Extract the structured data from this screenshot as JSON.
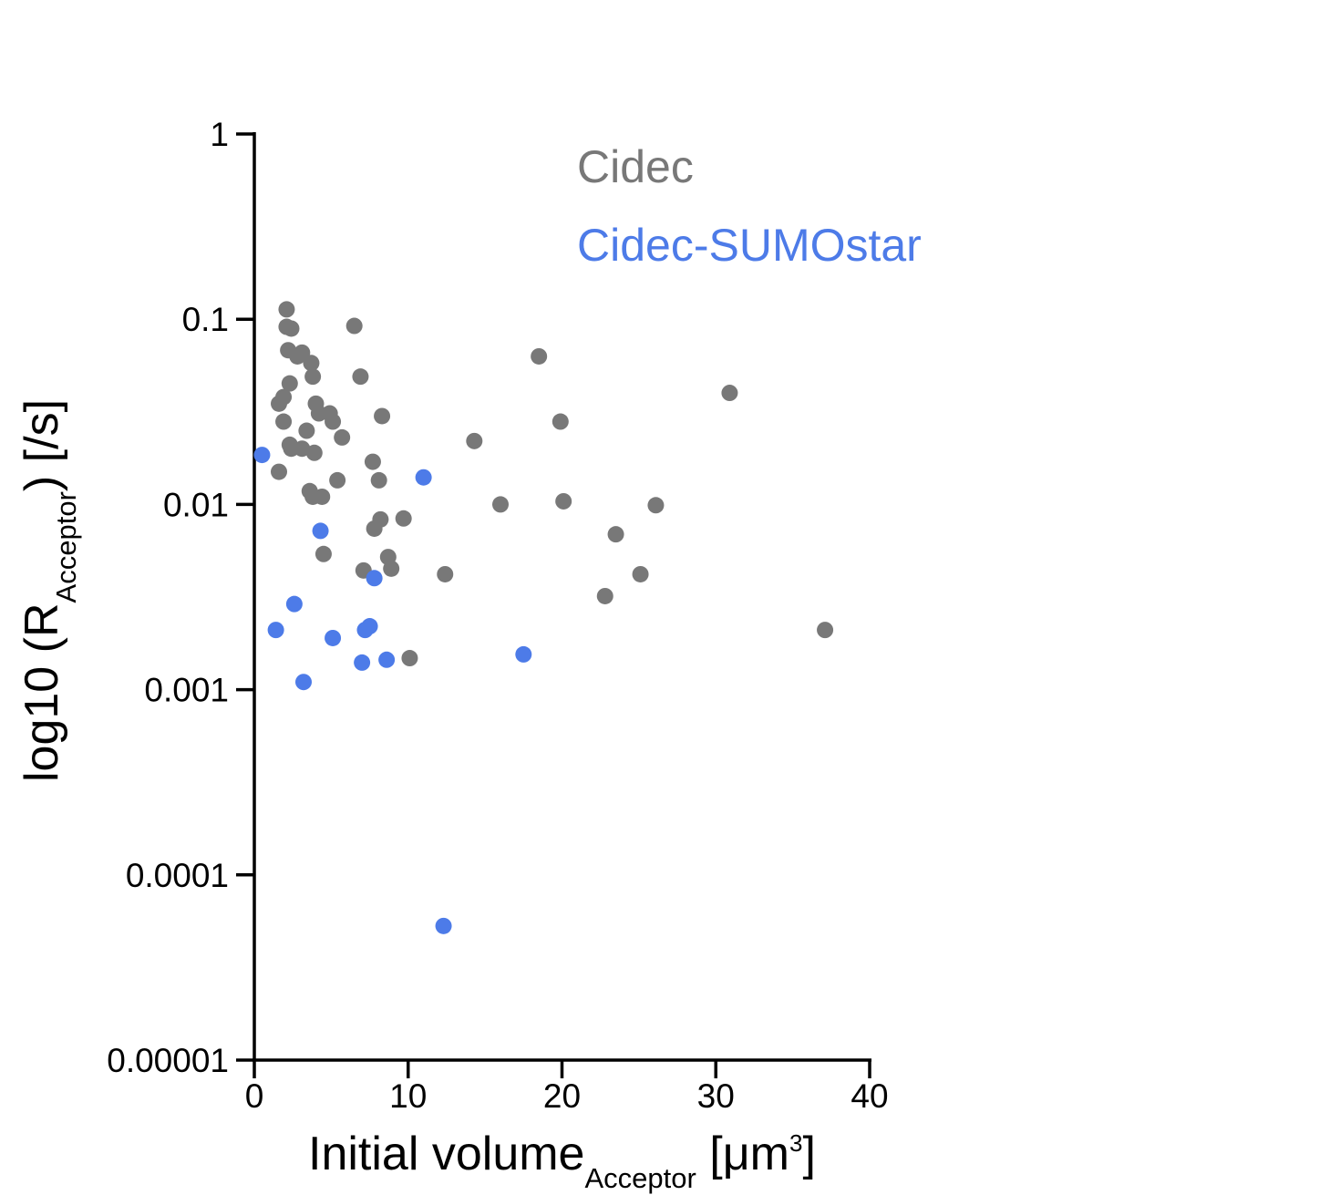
{
  "chart_data": {
    "type": "scatter",
    "xlabel": {
      "main": "Initial volume",
      "sub": "Acceptor",
      "unit_open": " [μm",
      "unit_sup": "3",
      "unit_close": "]"
    },
    "ylabel": {
      "main": "log10 (R",
      "sub": "Acceptor",
      "rest": ") [/s]"
    },
    "xlim": [
      0,
      40
    ],
    "ylim": [
      1e-05,
      1
    ],
    "yscale": "log",
    "xticks": [
      0,
      10,
      20,
      30,
      40
    ],
    "xtick_labels": [
      "0",
      "10",
      "20",
      "30",
      "40"
    ],
    "yticks": [
      1,
      0.1,
      0.01,
      0.001,
      0.0001,
      1e-05
    ],
    "ytick_labels": [
      "1",
      "0.1",
      "0.01",
      "0.001",
      "0.0001",
      "0.00001"
    ],
    "legend_placement": "top-center",
    "grid": false,
    "series": [
      {
        "name": "Cidec",
        "color": "#787878",
        "points": [
          [
            2.1,
            0.113
          ],
          [
            2.1,
            0.091
          ],
          [
            2.4,
            0.089
          ],
          [
            6.5,
            0.092
          ],
          [
            2.2,
            0.068
          ],
          [
            2.8,
            0.063
          ],
          [
            3.1,
            0.066
          ],
          [
            3.7,
            0.058
          ],
          [
            3.8,
            0.049
          ],
          [
            2.3,
            0.045
          ],
          [
            6.9,
            0.049
          ],
          [
            18.5,
            0.063
          ],
          [
            1.9,
            0.038
          ],
          [
            1.6,
            0.035
          ],
          [
            4.0,
            0.035
          ],
          [
            4.2,
            0.031
          ],
          [
            4.9,
            0.031
          ],
          [
            5.1,
            0.028
          ],
          [
            1.9,
            0.028
          ],
          [
            3.4,
            0.025
          ],
          [
            8.3,
            0.03
          ],
          [
            19.9,
            0.028
          ],
          [
            30.9,
            0.04
          ],
          [
            5.7,
            0.023
          ],
          [
            2.3,
            0.021
          ],
          [
            2.4,
            0.02
          ],
          [
            3.1,
            0.02
          ],
          [
            3.9,
            0.019
          ],
          [
            14.3,
            0.022
          ],
          [
            1.6,
            0.015
          ],
          [
            7.7,
            0.017
          ],
          [
            5.4,
            0.0135
          ],
          [
            8.1,
            0.0135
          ],
          [
            3.6,
            0.0118
          ],
          [
            3.8,
            0.011
          ],
          [
            4.4,
            0.011
          ],
          [
            16.0,
            0.01
          ],
          [
            20.1,
            0.0104
          ],
          [
            26.1,
            0.0099
          ],
          [
            8.2,
            0.0083
          ],
          [
            9.7,
            0.0084
          ],
          [
            7.8,
            0.0074
          ],
          [
            23.5,
            0.0069
          ],
          [
            4.5,
            0.0054
          ],
          [
            8.7,
            0.0052
          ],
          [
            7.1,
            0.0044
          ],
          [
            8.9,
            0.0045
          ],
          [
            12.4,
            0.0042
          ],
          [
            25.1,
            0.0042
          ],
          [
            22.8,
            0.0032
          ],
          [
            37.1,
            0.0021
          ],
          [
            10.1,
            0.00148
          ]
        ]
      },
      {
        "name": "Cidec-SUMOstar",
        "color": "#4d7be8",
        "points": [
          [
            0.5,
            0.0185
          ],
          [
            11.0,
            0.014
          ],
          [
            4.3,
            0.0072
          ],
          [
            7.8,
            0.004
          ],
          [
            2.6,
            0.0029
          ],
          [
            1.4,
            0.0021
          ],
          [
            7.2,
            0.0021
          ],
          [
            7.5,
            0.0022
          ],
          [
            5.1,
            0.0019
          ],
          [
            17.5,
            0.00155
          ],
          [
            7.0,
            0.0014
          ],
          [
            8.6,
            0.00145
          ],
          [
            3.2,
            0.0011
          ],
          [
            12.3,
            5.3e-05
          ]
        ]
      }
    ]
  }
}
